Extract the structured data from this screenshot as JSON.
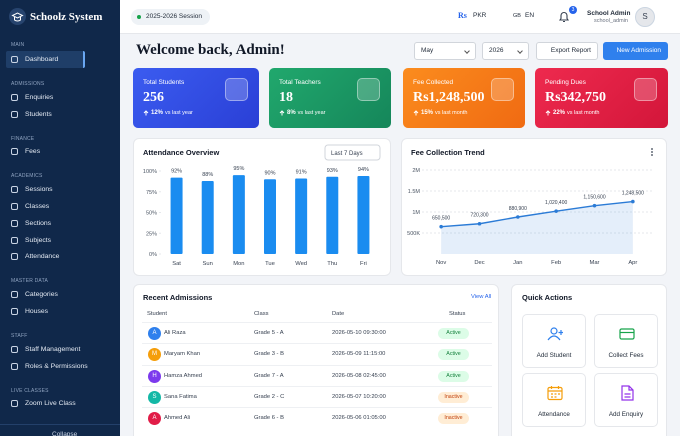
{
  "sidebar": {
    "brand": "Schoolz System",
    "sections": [
      {
        "title": "MAIN",
        "items": [
          "Dashboard"
        ]
      },
      {
        "title": "ADMISSIONS",
        "items": [
          "Enquiries",
          "Students"
        ]
      },
      {
        "title": "FINANCE",
        "items": [
          "Fees"
        ]
      },
      {
        "title": "ACADEMICS",
        "items": [
          "Sessions",
          "Classes",
          "Sections",
          "Subjects",
          "Attendance"
        ]
      },
      {
        "title": "MASTER DATA",
        "items": [
          "Categories",
          "Houses"
        ]
      },
      {
        "title": "STAFF",
        "items": [
          "Staff Management",
          "Roles & Permissions"
        ]
      },
      {
        "title": "LIVE CLASSES",
        "items": [
          "Zoom Live Class"
        ]
      }
    ],
    "collapse": "Collapse"
  },
  "topbar": {
    "session": "2025-2026 Session",
    "currency_symbol": "Rs",
    "currency": "PKR",
    "language_flag": "GB",
    "language": "EN",
    "notifications": "3",
    "user_name": "School Admin",
    "user_handle": "school_admin",
    "avatar_initial": "S"
  },
  "header": {
    "title": "Welcome back, Admin!",
    "month": "May",
    "year": "2026",
    "export_button": "Export Report",
    "new_button": "New Admission"
  },
  "stats": [
    {
      "title": "Total Students",
      "value": "256",
      "change": "12%",
      "change_note": "vs last year"
    },
    {
      "title": "Total Teachers",
      "value": "18",
      "change": "8%",
      "change_note": "vs last year"
    },
    {
      "title": "Fee Collected",
      "value": "Rs1,248,500",
      "change": "15%",
      "change_note": "vs last month"
    },
    {
      "title": "Pending Dues",
      "value": "Rs342,750",
      "change": "22%",
      "change_note": "vs last month"
    }
  ],
  "attendance_chart": {
    "type": "bar",
    "title": "Attendance Overview",
    "range_select": "Last 7 Days",
    "categories": [
      "Sat",
      "Sun",
      "Mon",
      "Tue",
      "Wed",
      "Thu",
      "Fri"
    ],
    "values": [
      92,
      88,
      95,
      90,
      91,
      93,
      94
    ],
    "value_labels": [
      "92%",
      "88%",
      "95%",
      "90%",
      "91%",
      "93%",
      "94%"
    ],
    "ylim": [
      0,
      100
    ],
    "yticks": [
      {
        "value": 0,
        "label": "0%"
      },
      {
        "value": 25,
        "label": "25%"
      },
      {
        "value": 50,
        "label": "50%"
      },
      {
        "value": 75,
        "label": "75%"
      },
      {
        "value": 100,
        "label": "100%"
      }
    ],
    "color": "#1a8cf0"
  },
  "fee_chart": {
    "type": "line",
    "title": "Fee Collection Trend",
    "categories": [
      "Nov",
      "Dec",
      "Jan",
      "Feb",
      "Mar",
      "Apr"
    ],
    "values": [
      650500,
      720300,
      880900,
      1020400,
      1150600,
      1248500
    ],
    "value_labels": [
      "650,500",
      "720,300",
      "880,900",
      "1,020,400",
      "1,150,600",
      "1,248,500"
    ],
    "ylim": [
      0,
      2000000
    ],
    "yticks": [
      {
        "value": 500000,
        "label": "500K"
      },
      {
        "value": 1000000,
        "label": "1M"
      },
      {
        "value": 1500000,
        "label": "1.5M"
      },
      {
        "value": 2000000,
        "label": "2M"
      }
    ],
    "color": "#2b7bd6",
    "grid": true
  },
  "recent_admissions": {
    "title": "Recent Admissions",
    "view_all": "View All",
    "columns": [
      "Student",
      "Class",
      "Date",
      "Status"
    ],
    "rows": [
      {
        "initial": "A",
        "name": "Ali Raza",
        "class": "Grade 5 - A",
        "date": "2026-05-10 09:30:00",
        "status": "Active"
      },
      {
        "initial": "M",
        "name": "Maryam Khan",
        "class": "Grade 3 - B",
        "date": "2026-05-09 11:15:00",
        "status": "Active"
      },
      {
        "initial": "H",
        "name": "Hamza Ahmed",
        "class": "Grade 7 - A",
        "date": "2026-05-08 02:45:00",
        "status": "Active"
      },
      {
        "initial": "S",
        "name": "Sana Fatima",
        "class": "Grade 2 - C",
        "date": "2026-05-07 10:20:00",
        "status": "Inactive"
      },
      {
        "initial": "A",
        "name": "Ahmed Ali",
        "class": "Grade 6 - B",
        "date": "2026-05-06 01:05:00",
        "status": "Inactive"
      }
    ]
  },
  "quick_actions": {
    "title": "Quick Actions",
    "actions": [
      "Add Student",
      "Collect Fees",
      "Attendance",
      "Add Enquiry"
    ]
  }
}
